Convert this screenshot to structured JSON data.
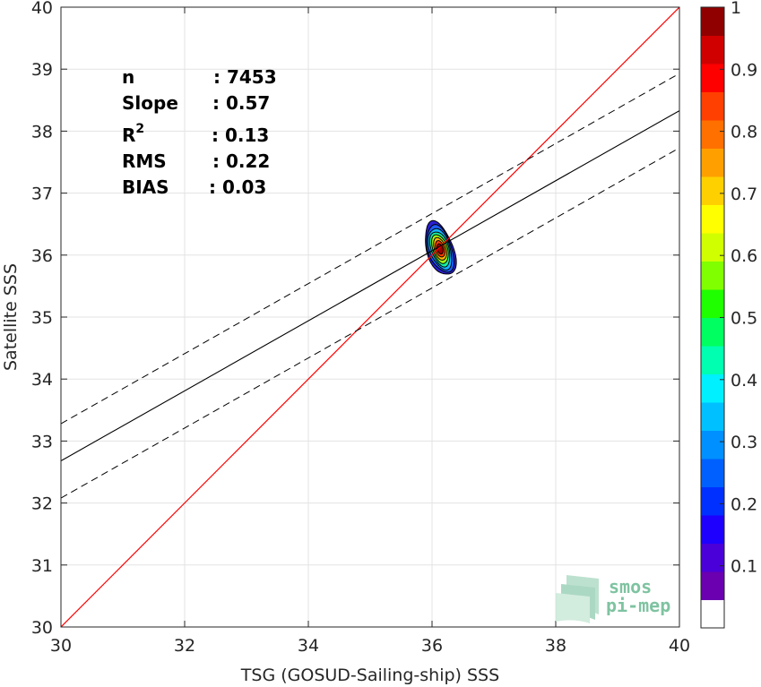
{
  "chart_data": {
    "type": "contour",
    "xlabel": "TSG (GOSUD-Sailing-ship) SSS",
    "ylabel": "Satellite SSS",
    "xlim": [
      30,
      40
    ],
    "ylim": [
      30,
      40
    ],
    "x_ticks": [
      30,
      32,
      34,
      36,
      38,
      40
    ],
    "y_ticks": [
      30,
      31,
      32,
      33,
      34,
      35,
      36,
      37,
      38,
      39,
      40
    ],
    "grid": true,
    "stats": [
      {
        "label": "n",
        "value": ": 7453"
      },
      {
        "label": "Slope",
        "value": ": 0.57"
      },
      {
        "label": "R",
        "sup": "2",
        "value": ": 0.13"
      },
      {
        "label": "RMS",
        "value": ": 0.22"
      },
      {
        "label": "BIAS",
        "value": ": 0.03"
      }
    ],
    "identity_line": {
      "from": [
        30,
        30
      ],
      "to": [
        40,
        40
      ],
      "color": "#ff0000"
    },
    "regression_line": {
      "from": [
        30,
        32.68
      ],
      "to": [
        40,
        38.33
      ],
      "color": "#000000"
    },
    "confidence_lines": [
      {
        "from": [
          30,
          33.28
        ],
        "to": [
          40,
          38.93
        ]
      },
      {
        "from": [
          30,
          32.08
        ],
        "to": [
          40,
          37.73
        ]
      }
    ],
    "density_center": [
      36.13,
      36.1
    ],
    "contour_levels": [
      {
        "level": 0.05,
        "color": "#2a1fd0"
      },
      {
        "level": 0.2,
        "color": "#1e5cff"
      },
      {
        "level": 0.3,
        "color": "#14b4ff"
      },
      {
        "level": 0.45,
        "color": "#14f0a0"
      },
      {
        "level": 0.6,
        "color": "#a0ff14"
      },
      {
        "level": 0.75,
        "color": "#ffb400"
      },
      {
        "level": 0.85,
        "color": "#ff3c00"
      },
      {
        "level": 0.95,
        "color": "#a00000"
      }
    ],
    "colorbar": {
      "range": [
        0,
        1
      ],
      "ticks": [
        {
          "value": 0.1,
          "label": "0.1"
        },
        {
          "value": 0.2,
          "label": "0.2"
        },
        {
          "value": 0.3,
          "label": "0.3"
        },
        {
          "value": 0.4,
          "label": "0.4"
        },
        {
          "value": 0.5,
          "label": "0.5"
        },
        {
          "value": 0.6,
          "label": "0.6"
        },
        {
          "value": 0.7,
          "label": "0.7"
        },
        {
          "value": 0.8,
          "label": "0.8"
        },
        {
          "value": 0.9,
          "label": "0.9"
        },
        {
          "value": 1,
          "label": "1"
        }
      ],
      "colors": [
        "#ffffff",
        "#6a00b0",
        "#4a00d8",
        "#1e00ff",
        "#0030ff",
        "#0060ff",
        "#0090ff",
        "#00c0ff",
        "#00f0ff",
        "#00ffb0",
        "#00ff60",
        "#20ff00",
        "#80ff00",
        "#d0ff00",
        "#ffff00",
        "#ffd000",
        "#ffa000",
        "#ff7000",
        "#ff4000",
        "#ff0000",
        "#d00000",
        "#900000"
      ]
    }
  },
  "logo": {
    "line1": "smos",
    "line2": "pi-mep"
  }
}
